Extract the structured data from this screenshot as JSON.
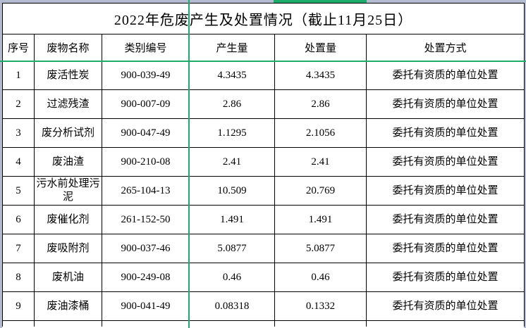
{
  "title": "2022年危废产生及处置情况（截止11月25日）",
  "table": {
    "headers": [
      "序号",
      "废物名称",
      "类别编号",
      "产生量",
      "处置量",
      "处置方式"
    ],
    "rows": [
      [
        "1",
        "废活性炭",
        "900-039-49",
        "4.3435",
        "4.3435",
        "委托有资质的单位处置"
      ],
      [
        "2",
        "过滤残渣",
        "900-007-09",
        "2.86",
        "2.86",
        "委托有资质的单位处置"
      ],
      [
        "3",
        "废分析试剂",
        "900-047-49",
        "1.1295",
        "2.1056",
        "委托有资质的单位处置"
      ],
      [
        "4",
        "废油渣",
        "900-210-08",
        "2.41",
        "2.41",
        "委托有资质的单位处置"
      ],
      [
        "5",
        "污水前处理污泥",
        "265-104-13",
        "10.509",
        "20.769",
        "委托有资质的单位处置"
      ],
      [
        "6",
        "废催化剂",
        "261-152-50",
        "1.491",
        "1.491",
        "委托有资质的单位处置"
      ],
      [
        "7",
        "废吸附剂",
        "900-037-46",
        "5.0877",
        "5.0877",
        "委托有资质的单位处置"
      ],
      [
        "8",
        "废机油",
        "900-249-08",
        "0.46",
        "0.46",
        "委托有资质的单位处置"
      ],
      [
        "9",
        "废油漆桶",
        "900-041-49",
        "0.08318",
        "0.1332",
        "委托有资质的单位处置"
      ]
    ]
  },
  "colors": {
    "freeze_line_green": "#1cab68",
    "edge_strip": "#b3bbd1",
    "grid_border": "#000000"
  }
}
